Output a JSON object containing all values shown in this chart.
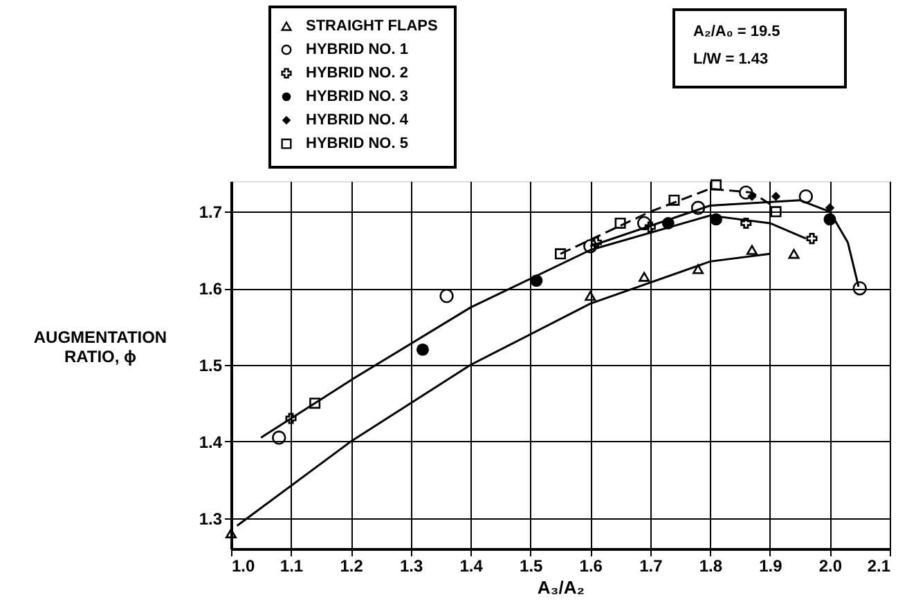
{
  "chart_data": {
    "type": "scatter",
    "xlabel": "A₃/A₂",
    "ylabel": "AUGMENTATION\nRATIO, ϕ",
    "xlim": [
      1.0,
      2.1
    ],
    "ylim": [
      1.26,
      1.74
    ],
    "xticks": [
      {
        "value": 1,
        "label": "1.0"
      },
      1.1,
      1.2,
      1.3,
      1.4,
      1.5,
      1.6,
      1.7,
      1.8,
      1.9,
      {
        "value": 2,
        "label": "2.0"
      },
      2.1
    ],
    "yticks": [
      1.3,
      1.4,
      1.5,
      1.6,
      1.7
    ],
    "grid": true,
    "legend": "top left",
    "annotations": [
      "A₂/A₀ = 19.5",
      "L/W = 1.43"
    ],
    "series": [
      {
        "name": "STRAIGHT FLAPS",
        "color": "#000000",
        "marker": "triangle",
        "x": [
          1.0,
          1.6,
          1.69,
          1.78,
          1.87,
          1.94
        ],
        "values": [
          1.28,
          1.59,
          1.615,
          1.625,
          1.65,
          1.645
        ]
      },
      {
        "name": "HYBRID NO. 1",
        "color": "#000000",
        "marker": "circle",
        "x": [
          1.08,
          1.36,
          1.6,
          1.69,
          1.78,
          1.86,
          1.96,
          2.05
        ],
        "values": [
          1.405,
          1.59,
          1.655,
          1.685,
          1.705,
          1.725,
          1.72,
          1.6
        ]
      },
      {
        "name": "HYBRID NO. 2",
        "color": "#000000",
        "marker": "cross",
        "x": [
          1.1,
          1.61,
          1.7,
          1.86,
          1.97
        ],
        "values": [
          1.43,
          1.66,
          1.68,
          1.685,
          1.665
        ]
      },
      {
        "name": "HYBRID NO. 3",
        "color": "#000000",
        "marker": "circle",
        "x": [
          1.32,
          1.51,
          1.73,
          1.81,
          2.0
        ],
        "values": [
          1.52,
          1.61,
          1.685,
          1.69,
          1.69
        ]
      },
      {
        "name": "HYBRID NO. 4",
        "color": "#000000",
        "marker": "diamond",
        "x": [
          1.87,
          1.91,
          2.0
        ],
        "values": [
          1.72,
          1.72,
          1.705
        ]
      },
      {
        "name": "HYBRID NO. 5",
        "color": "#000000",
        "marker": "square",
        "x": [
          1.14,
          1.55,
          1.65,
          1.74,
          1.81,
          1.91
        ],
        "values": [
          1.45,
          1.645,
          1.685,
          1.715,
          1.735,
          1.7
        ]
      },
      {
        "type": "line",
        "color": "#000000",
        "line_style": "solid",
        "x": [
          1.01,
          1.2,
          1.4,
          1.6,
          1.8,
          1.9
        ],
        "values": [
          1.29,
          1.4,
          1.5,
          1.58,
          1.635,
          1.645
        ]
      },
      {
        "type": "line",
        "color": "#000000",
        "line_style": "solid",
        "x": [
          1.05,
          1.2,
          1.4,
          1.6,
          1.8,
          1.9,
          1.96
        ],
        "values": [
          1.405,
          1.48,
          1.575,
          1.65,
          1.695,
          1.685,
          1.665
        ]
      },
      {
        "type": "line",
        "color": "#000000",
        "line_style": "solid",
        "x": [
          1.6,
          1.8,
          1.95,
          2.0,
          2.03,
          2.048
        ],
        "values": [
          1.655,
          1.708,
          1.715,
          1.7,
          1.66,
          1.602
        ]
      },
      {
        "type": "line",
        "color": "#000000",
        "line_style": "dashed",
        "x": [
          1.55,
          1.7,
          1.8,
          1.87,
          1.9
        ],
        "values": [
          1.645,
          1.7,
          1.73,
          1.725,
          1.71
        ]
      }
    ]
  }
}
